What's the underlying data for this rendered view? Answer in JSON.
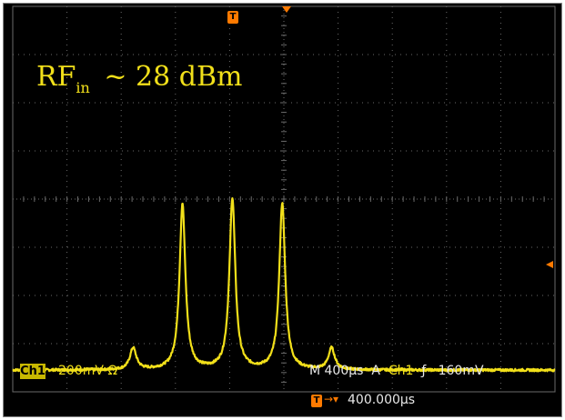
{
  "annotation": {
    "main": "RF",
    "sub": "in",
    "value": " ~ 28 dBm"
  },
  "status": {
    "ch1_badge": "Ch1",
    "ch1_scale": "200mV Ω",
    "timebase": "M 400µs",
    "trigger_mode": "A",
    "trigger_source": "Ch1",
    "trigger_slope": "ƒ",
    "trigger_level": "160mV",
    "delay_arrow": "→▾",
    "delay_value": "400.000µs"
  },
  "markers": {
    "trigger_position_icon": "T",
    "delay_icon": "T"
  },
  "colors": {
    "trace": "#f2e01a",
    "grid": "#6a6a6a",
    "trigger_marker": "#ff7a00",
    "background": "#000000"
  },
  "chart_data": {
    "type": "line",
    "title": "",
    "xlabel": "",
    "ylabel": "",
    "grid": true,
    "divisions": {
      "x": 10,
      "y": 8
    },
    "x_range_div": [
      0,
      10
    ],
    "y_range_div": [
      0,
      8
    ],
    "series": [
      {
        "baseline_div": 0.45,
        "peaks": [
          {
            "x": 2.22,
            "amplitude_div": 0.45,
            "width_div": 0.07
          },
          {
            "x": 3.13,
            "amplitude_div": 3.45,
            "width_div": 0.065
          },
          {
            "x": 4.05,
            "amplitude_div": 3.55,
            "width_div": 0.065
          },
          {
            "x": 4.97,
            "amplitude_div": 3.45,
            "width_div": 0.065
          },
          {
            "x": 5.88,
            "amplitude_div": 0.45,
            "width_div": 0.07
          }
        ]
      }
    ]
  }
}
